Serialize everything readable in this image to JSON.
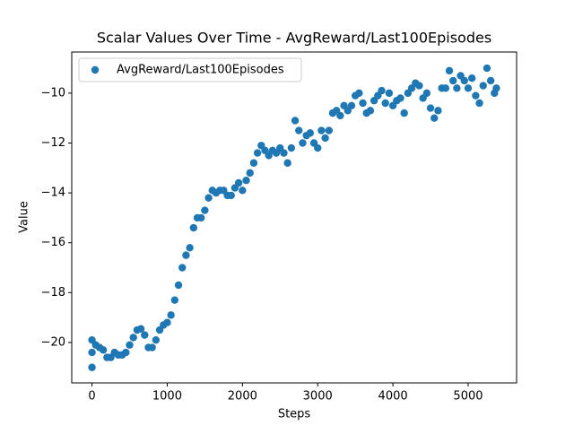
{
  "chart_data": {
    "type": "scatter",
    "title": "Scalar Values Over Time - AvgReward/Last100Episodes",
    "xlabel": "Steps",
    "ylabel": "Value",
    "legend": "upper left",
    "xlim": [
      -269,
      5644
    ],
    "ylim": [
      -21.62,
      -8.35
    ],
    "xticks": [
      0,
      1000,
      2000,
      3000,
      4000,
      5000
    ],
    "yticks": [
      {
        "value": -20,
        "label": "−20"
      },
      {
        "value": -18,
        "label": "−18"
      },
      {
        "value": -16,
        "label": "−16"
      },
      {
        "value": -14,
        "label": "−14"
      },
      {
        "value": -12,
        "label": "−12"
      },
      {
        "value": -10,
        "label": "−10"
      }
    ],
    "series": [
      {
        "name": "AvgReward/Last100Episodes",
        "color": "#1f77b4",
        "x": [
          0,
          0,
          0,
          50,
          100,
          150,
          200,
          250,
          300,
          350,
          400,
          450,
          500,
          550,
          600,
          650,
          700,
          750,
          800,
          850,
          900,
          950,
          1000,
          1050,
          1100,
          1150,
          1200,
          1250,
          1300,
          1350,
          1400,
          1450,
          1500,
          1550,
          1600,
          1650,
          1700,
          1750,
          1800,
          1850,
          1900,
          1950,
          2000,
          2050,
          2100,
          2150,
          2200,
          2250,
          2300,
          2350,
          2400,
          2450,
          2500,
          2550,
          2600,
          2650,
          2700,
          2750,
          2800,
          2850,
          2900,
          2950,
          3000,
          3050,
          3100,
          3150,
          3200,
          3250,
          3300,
          3350,
          3400,
          3450,
          3500,
          3550,
          3600,
          3650,
          3700,
          3750,
          3800,
          3850,
          3900,
          3950,
          4000,
          4050,
          4100,
          4150,
          4200,
          4250,
          4300,
          4350,
          4400,
          4450,
          4500,
          4550,
          4600,
          4650,
          4700,
          4750,
          4800,
          4850,
          4900,
          4950,
          5000,
          5050,
          5100,
          5150,
          5200,
          5250,
          5300,
          5350,
          5375
        ],
        "values": [
          -21,
          -20.4,
          -19.9,
          -20.1,
          -20.2,
          -20.3,
          -20.6,
          -20.6,
          -20.4,
          -20.5,
          -20.5,
          -20.4,
          -20.1,
          -19.8,
          -19.5,
          -19.45,
          -19.7,
          -20.2,
          -20.2,
          -19.9,
          -19.5,
          -19.3,
          -19.2,
          -18.9,
          -18.3,
          -17.7,
          -17.0,
          -16.5,
          -16.2,
          -15.4,
          -15.0,
          -15.0,
          -14.7,
          -14.2,
          -13.9,
          -14.0,
          -13.9,
          -13.9,
          -14.1,
          -14.1,
          -13.8,
          -13.6,
          -13.9,
          -13.5,
          -13.2,
          -12.8,
          -12.4,
          -12.1,
          -12.3,
          -12.5,
          -12.3,
          -12.4,
          -12.2,
          -12.4,
          -12.8,
          -12.2,
          -11.1,
          -11.5,
          -12.0,
          -11.7,
          -11.6,
          -12.0,
          -12.2,
          -11.5,
          -11.8,
          -11.5,
          -10.8,
          -10.7,
          -10.9,
          -10.5,
          -10.7,
          -10.5,
          -10.1,
          -10.0,
          -10.4,
          -10.8,
          -10.7,
          -10.3,
          -10.1,
          -9.9,
          -10.4,
          -10.0,
          -10.5,
          -10.3,
          -10.2,
          -10.8,
          -10.0,
          -9.8,
          -9.6,
          -9.7,
          -10.2,
          -10.0,
          -10.6,
          -11.0,
          -10.7,
          -9.8,
          -9.8,
          -9.1,
          -9.5,
          -9.8,
          -9.3,
          -9.5,
          -9.8,
          -9.4,
          -10.1,
          -10.4,
          -9.7,
          -9.0,
          -9.5,
          -10.0,
          -9.8
        ]
      }
    ]
  }
}
